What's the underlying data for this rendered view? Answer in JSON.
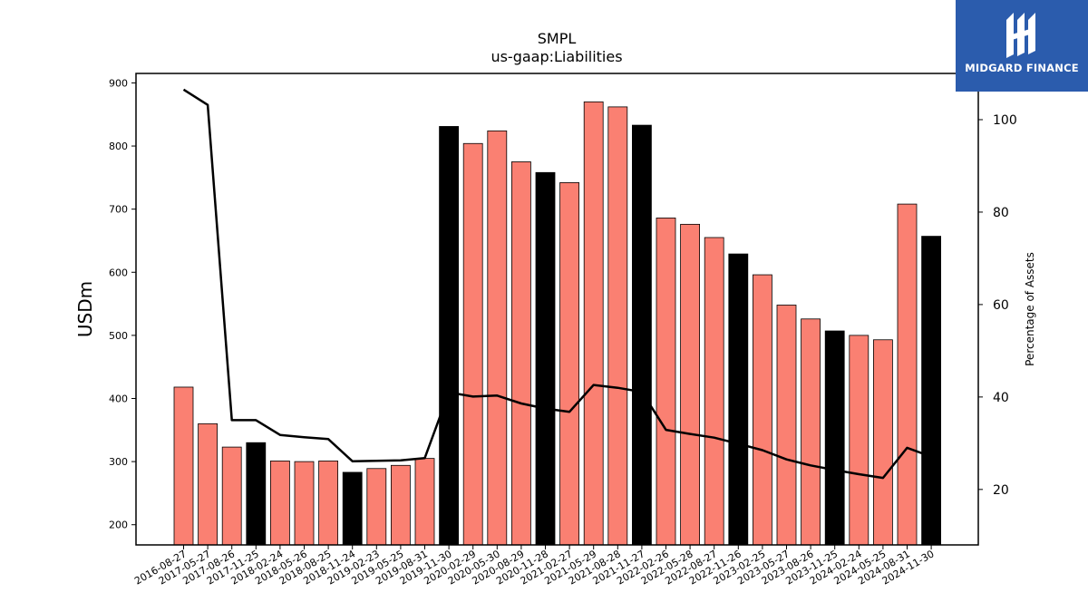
{
  "chart_data": {
    "type": "bar+line",
    "title": "SMPL",
    "subtitle": "us-gaap:Liabilities",
    "ylabel": "USDm",
    "y2label": "Percentage of Assets",
    "ylim": [
      168,
      915
    ],
    "y2lim": [
      8,
      110
    ],
    "yticks": [
      200,
      300,
      400,
      500,
      600,
      700,
      800,
      900
    ],
    "y2ticks": [
      20,
      40,
      60,
      80,
      100
    ],
    "colors": {
      "bar": "#fa8072",
      "bar_highlight": "#000000",
      "line": "#000000"
    },
    "categories": [
      "2016-08-27",
      "2017-05-27",
      "2017-08-26",
      "2017-11-25",
      "2018-02-24",
      "2018-05-26",
      "2018-08-25",
      "2018-11-24",
      "2019-02-23",
      "2019-05-25",
      "2019-08-31",
      "2019-11-30",
      "2020-02-29",
      "2020-05-30",
      "2020-08-29",
      "2020-11-28",
      "2021-02-27",
      "2021-05-29",
      "2021-08-28",
      "2021-11-27",
      "2022-02-26",
      "2022-05-28",
      "2022-08-27",
      "2022-11-26",
      "2023-02-25",
      "2023-05-27",
      "2023-08-26",
      "2023-11-25",
      "2024-02-24",
      "2024-05-25",
      "2024-08-31",
      "2024-11-30"
    ],
    "series": [
      {
        "kind": "bar",
        "values": [
          418,
          360,
          323,
          330,
          301,
          300,
          301,
          283,
          289,
          294,
          305,
          831,
          804,
          824,
          775,
          758,
          742,
          870,
          862,
          833,
          686,
          676,
          655,
          629,
          596,
          548,
          526,
          507,
          500,
          493,
          708,
          657
        ],
        "highlight": [
          false,
          false,
          false,
          true,
          false,
          false,
          false,
          true,
          false,
          false,
          false,
          true,
          false,
          false,
          false,
          true,
          false,
          false,
          false,
          true,
          false,
          false,
          false,
          true,
          false,
          false,
          false,
          true,
          false,
          false,
          false,
          true
        ]
      },
      {
        "kind": "line",
        "axis": "right",
        "values": [
          106.5,
          103.2,
          35.0,
          35.0,
          31.8,
          31.3,
          30.9,
          26.1,
          26.2,
          26.3,
          26.8,
          41.0,
          40.1,
          40.3,
          38.6,
          37.5,
          36.8,
          42.6,
          42.0,
          41.1,
          32.9,
          32.0,
          31.2,
          29.9,
          28.5,
          26.5,
          25.2,
          24.2,
          23.3,
          22.5,
          29.0,
          27.1
        ]
      }
    ]
  },
  "logo": {
    "text": "MIDGARD FINANCE"
  }
}
